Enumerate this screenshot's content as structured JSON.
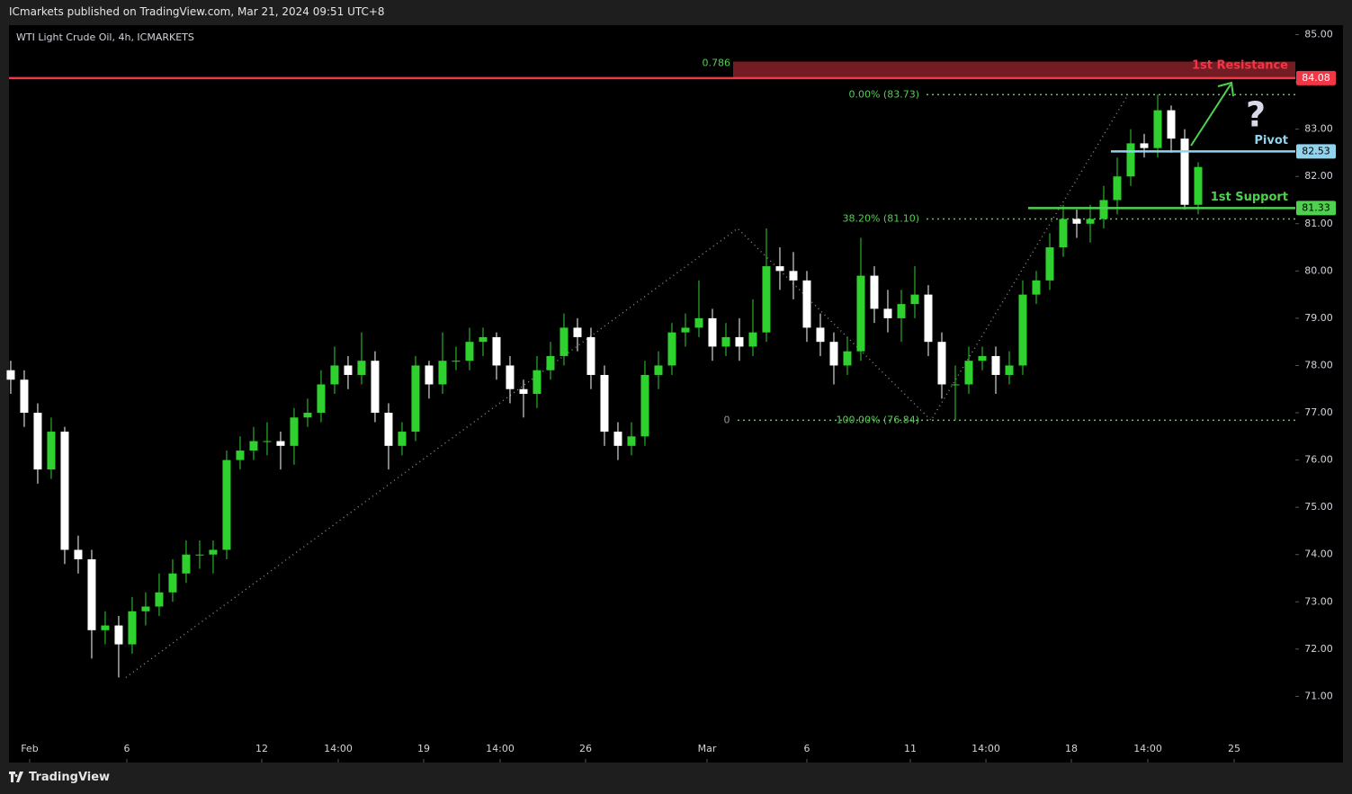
{
  "header": "ICmarkets published on TradingView.com, Mar 21, 2024 09:51 UTC+8",
  "brand": "TradingView",
  "chart_data": {
    "type": "candlestick",
    "title": "WTI Light Crude Oil, 4h, ICMARKETS",
    "up_color": "#2fd12f",
    "down_color": "#ffffff",
    "open": [
      77.9,
      77.7,
      77.0,
      75.8,
      76.6,
      74.1,
      73.9,
      72.4,
      72.5,
      72.1,
      72.8,
      72.9,
      73.2,
      73.6,
      74.0,
      74.0,
      74.1,
      76.0,
      76.2,
      76.4,
      76.4,
      76.3,
      76.9,
      77.0,
      77.6,
      78.0,
      77.8,
      78.1,
      77.0,
      76.3,
      76.6,
      78.0,
      77.6,
      78.1,
      78.1,
      78.5,
      78.6,
      78.0,
      77.5,
      77.4,
      77.9,
      78.2,
      78.8,
      78.6,
      77.8,
      76.6,
      76.3,
      76.5,
      77.8,
      78.0,
      78.7,
      78.8,
      79.0,
      78.4,
      78.6,
      78.4,
      78.7,
      80.1,
      80.0,
      79.8,
      78.8,
      78.5,
      78.0,
      78.3,
      79.9,
      79.2,
      79.0,
      79.3,
      79.5,
      78.5,
      77.6,
      77.6,
      78.1,
      78.2,
      77.8,
      78.0,
      79.5,
      79.8,
      80.5,
      81.1,
      81.0,
      81.1,
      81.5,
      82.0,
      82.7,
      82.6,
      83.4,
      82.8,
      81.4
    ],
    "high": [
      78.1,
      77.9,
      77.2,
      76.9,
      76.7,
      74.4,
      74.1,
      72.8,
      72.7,
      73.1,
      73.2,
      73.6,
      73.9,
      74.3,
      74.3,
      74.3,
      76.2,
      76.5,
      76.7,
      76.8,
      76.6,
      77.1,
      77.3,
      77.9,
      78.4,
      78.2,
      78.7,
      78.3,
      77.2,
      76.8,
      78.2,
      78.1,
      78.7,
      78.4,
      78.8,
      78.8,
      78.7,
      78.2,
      77.7,
      78.2,
      78.5,
      79.1,
      79.0,
      78.8,
      78.0,
      76.8,
      76.8,
      78.1,
      78.3,
      78.9,
      79.1,
      79.8,
      79.2,
      78.9,
      79.0,
      79.4,
      80.9,
      80.5,
      80.4,
      80.0,
      79.1,
      78.7,
      78.6,
      80.7,
      80.1,
      79.6,
      79.6,
      80.1,
      79.7,
      78.7,
      78.0,
      78.4,
      78.4,
      78.4,
      78.3,
      79.8,
      80.0,
      80.8,
      81.4,
      81.3,
      81.4,
      81.8,
      82.4,
      83.0,
      82.9,
      83.73,
      83.5,
      83.0,
      82.3
    ],
    "low": [
      77.4,
      76.7,
      75.5,
      75.6,
      73.8,
      73.6,
      71.8,
      72.1,
      71.4,
      71.9,
      72.5,
      72.7,
      73.0,
      73.4,
      73.7,
      73.6,
      73.9,
      75.8,
      76.0,
      76.1,
      75.8,
      75.9,
      76.7,
      76.8,
      77.4,
      77.5,
      77.6,
      76.8,
      75.8,
      76.1,
      76.4,
      77.3,
      77.4,
      77.9,
      77.9,
      78.2,
      77.7,
      77.2,
      76.9,
      77.1,
      77.7,
      78.0,
      78.3,
      77.5,
      76.3,
      76.0,
      76.1,
      76.3,
      77.5,
      77.8,
      78.4,
      78.6,
      78.1,
      78.2,
      78.1,
      78.2,
      78.5,
      79.6,
      79.4,
      78.5,
      78.2,
      77.6,
      77.8,
      78.1,
      78.9,
      78.7,
      78.5,
      79.0,
      78.2,
      77.3,
      76.84,
      77.4,
      77.9,
      77.4,
      77.6,
      77.8,
      79.3,
      79.6,
      80.3,
      80.7,
      80.6,
      80.9,
      81.2,
      81.8,
      82.4,
      82.4,
      82.5,
      81.3,
      81.2
    ],
    "close": [
      77.7,
      77.0,
      75.8,
      76.6,
      74.1,
      73.9,
      72.4,
      72.5,
      72.1,
      72.8,
      72.9,
      73.2,
      73.6,
      74.0,
      74.0,
      74.1,
      76.0,
      76.2,
      76.4,
      76.4,
      76.3,
      76.9,
      77.0,
      77.6,
      78.0,
      77.8,
      78.1,
      77.0,
      76.3,
      76.6,
      78.0,
      77.6,
      78.1,
      78.1,
      78.5,
      78.6,
      78.0,
      77.5,
      77.4,
      77.9,
      78.2,
      78.8,
      78.6,
      77.8,
      76.6,
      76.3,
      76.5,
      77.8,
      78.0,
      78.7,
      78.8,
      79.0,
      78.4,
      78.6,
      78.4,
      78.7,
      80.1,
      80.0,
      79.8,
      78.8,
      78.5,
      78.0,
      78.3,
      79.9,
      79.2,
      79.0,
      79.3,
      79.5,
      78.5,
      77.6,
      77.6,
      78.1,
      78.2,
      77.8,
      78.0,
      79.5,
      79.8,
      80.5,
      81.1,
      81.0,
      81.1,
      81.5,
      82.0,
      82.7,
      82.6,
      83.4,
      82.8,
      81.4,
      82.2
    ],
    "xlim": [
      -0.13,
      95.2
    ],
    "xticks": [
      {
        "value": 1.4,
        "label": "Feb"
      },
      {
        "value": 8.6,
        "label": "6"
      },
      {
        "value": 18.6,
        "label": "12"
      },
      {
        "value": 24.27,
        "label": "14:00"
      },
      {
        "value": 30.6,
        "label": "19"
      },
      {
        "value": 36.27,
        "label": "14:00"
      },
      {
        "value": 42.6,
        "label": "26"
      },
      {
        "value": 51.6,
        "label": "Mar"
      },
      {
        "value": 59,
        "label": "6"
      },
      {
        "value": 66.67,
        "label": "11"
      },
      {
        "value": 72.27,
        "label": "14:00"
      },
      {
        "value": 78.6,
        "label": "18"
      },
      {
        "value": 84.27,
        "label": "14:00"
      },
      {
        "value": 90.67,
        "label": "25"
      }
    ],
    "ylim": [
      69.6,
      85.2
    ],
    "yticks": [
      {
        "value": 71,
        "label": "71.00"
      },
      {
        "value": 72,
        "label": "72.00"
      },
      {
        "value": 73,
        "label": "73.00"
      },
      {
        "value": 74,
        "label": "74.00"
      },
      {
        "value": 75,
        "label": "75.00"
      },
      {
        "value": 76,
        "label": "76.00"
      },
      {
        "value": 77,
        "label": "77.00"
      },
      {
        "value": 78,
        "label": "78.00"
      },
      {
        "value": 79,
        "label": "79.00"
      },
      {
        "value": 80,
        "label": "80.00"
      },
      {
        "value": 81,
        "label": "81.00"
      },
      {
        "value": 82,
        "label": "82.00"
      },
      {
        "value": 83,
        "label": "83.00"
      },
      {
        "value": 84,
        "label": "84.00"
      },
      {
        "value": 85,
        "label": "85.00"
      }
    ],
    "levels": [
      {
        "name": "1st Resistance",
        "value": 84.08,
        "color": "#f23645"
      },
      {
        "name": "Pivot",
        "value": 82.53,
        "color": "#8fd3ee"
      },
      {
        "name": "1st Support",
        "value": 81.33,
        "color": "#4fd14f"
      }
    ],
    "fib_levels": [
      {
        "label": "0.00% (83.73)",
        "value": 83.73
      },
      {
        "label": "38.20% (81.10)",
        "value": 81.1
      },
      {
        "label": "100.00% (76.84)",
        "value": 76.84
      }
    ],
    "fib_color": "#4fd14f",
    "fib_zone": {
      "label": "0.786",
      "range": [
        84.08,
        84.43
      ],
      "color": "#9b2530"
    },
    "fib_start_label": "0",
    "zigzag": {
      "x": [
        8.53,
        53.87,
        68.2,
        82.8
      ],
      "y": [
        71.4,
        80.9,
        76.84,
        83.73
      ]
    },
    "annotation": "?"
  }
}
